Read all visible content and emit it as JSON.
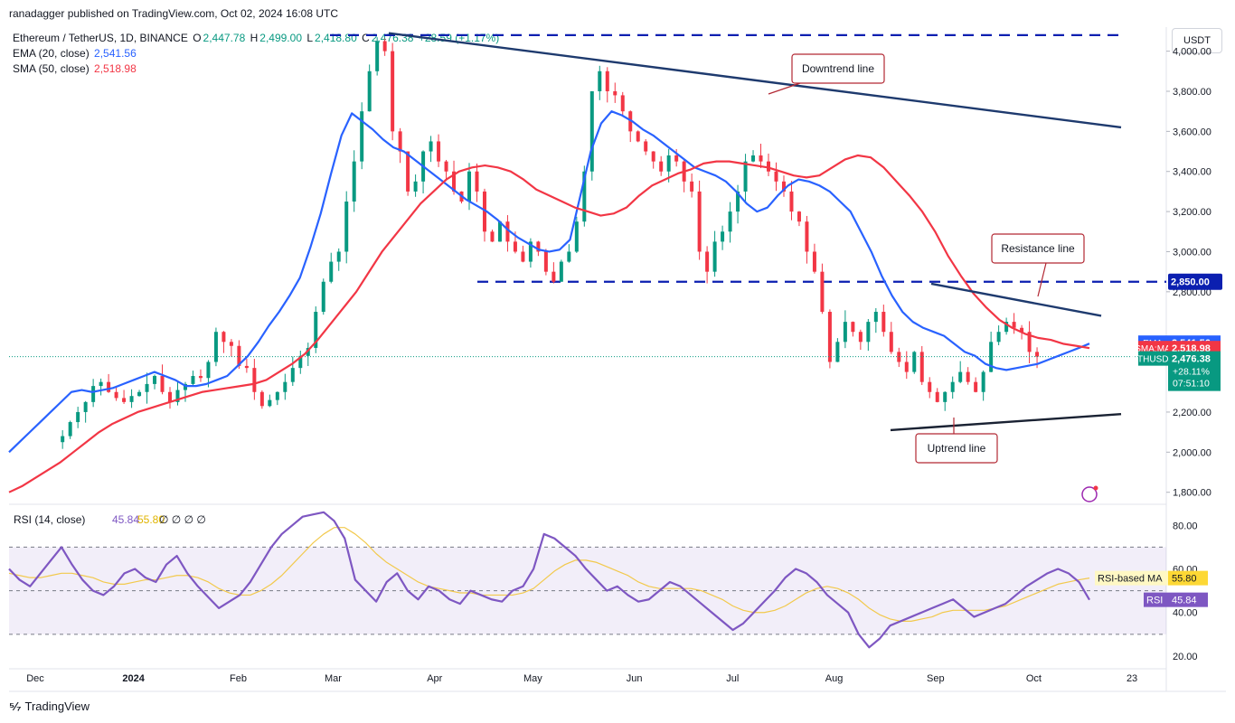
{
  "header": {
    "published": "ranadagger published on TradingView.com, Oct 02, 2024 16:08 UTC",
    "symbol": "Ethereum / TetherUS, 1D, BINANCE",
    "o_label": "O",
    "o_value": "2,447.78",
    "h_label": "H",
    "h_value": "2,499.00",
    "l_label": "L",
    "l_value": "2,418.80",
    "c_label": "C",
    "c_value": "2,476.38",
    "change": "+28.59 (+1.17%)",
    "ema_label": "EMA (20, close)",
    "ema_value": "2,541.56",
    "sma_label": "SMA (50, close)",
    "sma_value": "2,518.98",
    "currency": "USDT"
  },
  "footer": {
    "brand": "TradingView"
  },
  "colors": {
    "up": "#089981",
    "down": "#f23645",
    "ema": "#2962ff",
    "sma": "#f23645",
    "rsi": "#7e57c2",
    "rsi_ma": "#fdd835",
    "annotation": "#b22833",
    "trendline": "#1e3a6e"
  },
  "chart_data": [
    {
      "type": "candlestick",
      "title": "Ethereum / TetherUS, 1D, BINANCE",
      "x_ticks": [
        "Dec",
        "2024",
        "Feb",
        "Mar",
        "Apr",
        "May",
        "Jun",
        "Jul",
        "Aug",
        "Sep",
        "Oct",
        "23"
      ],
      "y_ticks": [
        "4,000.00",
        "3,800.00",
        "3,600.00",
        "3,400.00",
        "3,200.00",
        "3,000.00",
        "2,800.00",
        "2,200.00",
        "2,000.00",
        "1,800.00"
      ],
      "ylim": [
        1740,
        4120
      ],
      "last_price": 2476.38,
      "series": [
        {
          "name": "ETHUSDT daily close (approx.)",
          "values": [
            2050,
            2080,
            2150,
            2200,
            2250,
            2330,
            2350,
            2300,
            2270,
            2250,
            2280,
            2300,
            2340,
            2380,
            2300,
            2250,
            2310,
            2340,
            2380,
            2370,
            2450,
            2600,
            2550,
            2530,
            2430,
            2420,
            2300,
            2230,
            2260,
            2300,
            2350,
            2420,
            2480,
            2520,
            2700,
            2850,
            2950,
            3000,
            3250,
            3450,
            3700,
            3900,
            4050,
            4000,
            3600,
            3500,
            3300,
            3350,
            3500,
            3550,
            3450,
            3400,
            3300,
            3250,
            3400,
            3300,
            3100,
            3050,
            3150,
            3050,
            3000,
            2950,
            3050,
            3000,
            2900,
            2850,
            2950,
            3000,
            3150,
            3400,
            3800,
            3900,
            3800,
            3780,
            3700,
            3600,
            3550,
            3500,
            3450,
            3400,
            3480,
            3450,
            3350,
            3300,
            3000,
            2900,
            3050,
            3100,
            3200,
            3300,
            3450,
            3480,
            3450,
            3400,
            3350,
            3300,
            3200,
            3150,
            3000,
            2900,
            2700,
            2450,
            2550,
            2650,
            2600,
            2550,
            2650,
            2700,
            2600,
            2500,
            2450,
            2400,
            2500,
            2350,
            2300,
            2250,
            2300,
            2350,
            2400,
            2350,
            2300,
            2400,
            2550,
            2600,
            2650,
            2620,
            2600,
            2500,
            2476.38
          ]
        },
        {
          "name": "EMA (20, close)",
          "values": [
            2000,
            2050,
            2100,
            2150,
            2200,
            2250,
            2300,
            2310,
            2300,
            2310,
            2320,
            2340,
            2360,
            2380,
            2400,
            2380,
            2360,
            2330,
            2330,
            2340,
            2360,
            2380,
            2430,
            2480,
            2550,
            2630,
            2700,
            2780,
            2870,
            3020,
            3190,
            3390,
            3580,
            3690,
            3650,
            3610,
            3560,
            3520,
            3500,
            3460,
            3420,
            3380,
            3340,
            3300,
            3260,
            3230,
            3200,
            3160,
            3110,
            3070,
            3040,
            3010,
            3000,
            3010,
            3060,
            3280,
            3500,
            3640,
            3700,
            3680,
            3650,
            3610,
            3580,
            3540,
            3500,
            3460,
            3420,
            3400,
            3380,
            3350,
            3300,
            3240,
            3200,
            3220,
            3280,
            3330,
            3360,
            3350,
            3330,
            3300,
            3250,
            3200,
            3100,
            3000,
            2880,
            2780,
            2700,
            2650,
            2620,
            2600,
            2580,
            2540,
            2500,
            2480,
            2440,
            2420,
            2410,
            2420,
            2430,
            2440,
            2460,
            2480,
            2500,
            2520,
            2541.56
          ]
        },
        {
          "name": "SMA (50, close)",
          "values": [
            1800,
            1830,
            1870,
            1910,
            1950,
            2000,
            2050,
            2100,
            2140,
            2170,
            2200,
            2220,
            2240,
            2260,
            2280,
            2300,
            2310,
            2320,
            2330,
            2340,
            2360,
            2400,
            2440,
            2490,
            2560,
            2640,
            2720,
            2800,
            2900,
            3000,
            3080,
            3160,
            3240,
            3300,
            3360,
            3400,
            3420,
            3430,
            3420,
            3400,
            3360,
            3310,
            3280,
            3250,
            3220,
            3200,
            3180,
            3190,
            3220,
            3280,
            3330,
            3360,
            3390,
            3410,
            3440,
            3450,
            3450,
            3440,
            3430,
            3420,
            3400,
            3380,
            3370,
            3380,
            3420,
            3460,
            3480,
            3470,
            3420,
            3350,
            3280,
            3200,
            3100,
            2980,
            2880,
            2790,
            2720,
            2660,
            2620,
            2590,
            2570,
            2560,
            2540,
            2530,
            2518.98
          ]
        },
        {
          "name": "RSI (14, close)",
          "values": [
            60,
            55,
            52,
            58,
            64,
            70,
            62,
            55,
            50,
            48,
            52,
            58,
            60,
            56,
            54,
            62,
            66,
            58,
            52,
            47,
            42,
            45,
            48,
            54,
            62,
            70,
            76,
            80,
            84,
            85,
            86,
            82,
            74,
            55,
            50,
            45,
            54,
            58,
            50,
            46,
            52,
            50,
            46,
            44,
            50,
            48,
            46,
            45,
            50,
            52,
            60,
            76,
            74,
            70,
            66,
            60,
            55,
            50,
            52,
            48,
            45,
            46,
            50,
            54,
            52,
            48,
            44,
            40,
            36,
            32,
            35,
            40,
            45,
            50,
            56,
            60,
            58,
            54,
            48,
            44,
            40,
            30,
            24,
            28,
            34,
            36,
            38,
            40,
            42,
            44,
            46,
            42,
            38,
            40,
            42,
            44,
            48,
            52,
            55,
            58,
            60,
            58,
            54,
            45.84
          ]
        },
        {
          "name": "RSI-based MA",
          "values": [
            58,
            57,
            56,
            56,
            57,
            58,
            58,
            57,
            56,
            54,
            53,
            53,
            54,
            55,
            55,
            56,
            57,
            57,
            56,
            54,
            51,
            49,
            48,
            48,
            50,
            53,
            57,
            62,
            67,
            72,
            76,
            79,
            79,
            76,
            72,
            67,
            63,
            60,
            57,
            54,
            52,
            51,
            50,
            49,
            49,
            48,
            48,
            48,
            48,
            49,
            51,
            55,
            59,
            62,
            64,
            64,
            63,
            61,
            59,
            57,
            54,
            52,
            51,
            51,
            51,
            51,
            50,
            48,
            46,
            43,
            41,
            40,
            40,
            41,
            43,
            46,
            49,
            51,
            52,
            51,
            49,
            46,
            42,
            39,
            37,
            36,
            36,
            37,
            38,
            40,
            41,
            41,
            41,
            41,
            42,
            43,
            45,
            47,
            49,
            51,
            53,
            54,
            55,
            55.8
          ]
        }
      ],
      "rsi_axis": {
        "ticks": [
          "80.00",
          "60.00",
          "40.00",
          "20.00"
        ],
        "band": [
          30,
          70
        ],
        "mid": 50,
        "ylim": [
          15,
          88
        ],
        "title": "RSI (14, close)",
        "rsi_value": "45.84",
        "ma_value": "55.80",
        "extra": "∅ ∅ ∅ ∅"
      },
      "levels": [
        {
          "value": 4080,
          "label": ""
        },
        {
          "value": 2850,
          "label": "2,850.00"
        }
      ],
      "trendlines": [
        {
          "name": "Downtrend line",
          "from": [
            "Mar 11",
            4090
          ],
          "to": [
            "Oct 14",
            3620
          ]
        },
        {
          "name": "Uptrend line",
          "from": [
            "Aug 05",
            2110
          ],
          "to": [
            "Oct 14",
            2190
          ]
        },
        {
          "name": "Resistance line",
          "from": [
            "Aug 23",
            2840
          ],
          "to": [
            "Oct 03",
            2680
          ]
        }
      ],
      "annotations": [
        "Downtrend line",
        "Resistance line",
        "Uptrend line"
      ],
      "price_tags": [
        {
          "label": "EMA",
          "value": "2,541.56",
          "color": "#2962ff"
        },
        {
          "label": "SMA:MA",
          "value": "2,518.98",
          "color": "#f23645"
        },
        {
          "label": "ETHUSDT",
          "value": "2,476.38",
          "color": "#089981",
          "sub1": "+28.11%",
          "sub2": "07:51:10"
        }
      ],
      "rsi_tags": [
        {
          "label": "RSI-based MA",
          "value": "55.80"
        },
        {
          "label": "RSI",
          "value": "45.84"
        }
      ]
    }
  ]
}
